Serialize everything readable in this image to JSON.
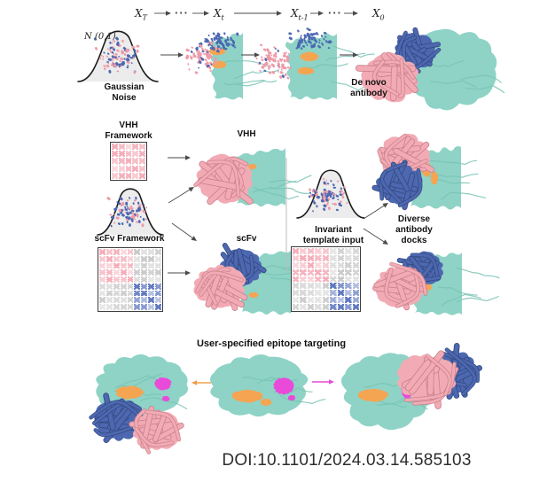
{
  "symbols": {
    "ellipsis": "···"
  },
  "diffusion": {
    "states": [
      {
        "base": "X",
        "sub": "T"
      },
      {
        "base": "X",
        "sub": "t"
      },
      {
        "base": "X",
        "sub": "t-1"
      },
      {
        "base": "X",
        "sub": "0"
      }
    ],
    "noise_dist": "N (0,1)",
    "gaussian_caption": "Gaussian\nNoise",
    "denovo_caption": "De novo\nantibody"
  },
  "frameworks": {
    "vhh_framework": "VHH\nFramework",
    "scfv_framework": "scFv Framework",
    "vhh_output": "VHH",
    "scfv_output": "scFv",
    "invariant_input": "Invariant\ntemplate input",
    "diverse_docks": "Diverse\nantibody\ndocks"
  },
  "epitope": {
    "title": "User-specified epitope targeting"
  },
  "footer": {
    "doi": "DOI:10.1101/2024.03.14.585103"
  },
  "colors": {
    "antigen_teal": "#8ed3c6",
    "antigen_texture": "#79c3b4",
    "antibody_pink": "#f2abb4",
    "antibody_pink_dark": "#c97f8b",
    "antibody_blue": "#4d68b0",
    "antibody_blue_dark": "#32487f",
    "cdr_orange": "#f5a452",
    "epitope_magenta": "#e94ad9",
    "matrix_pink": "#f5a9b5",
    "matrix_blue": "#5872bd",
    "matrix_gray": "#c7c7c7",
    "arrow_gray": "#4a4a4a"
  }
}
